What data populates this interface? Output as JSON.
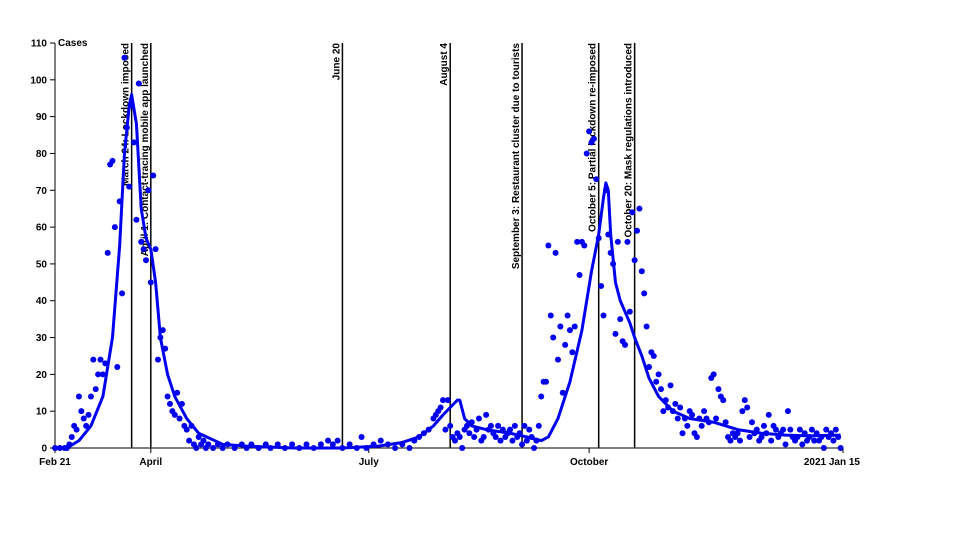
{
  "chart_data": {
    "type": "scatter",
    "ylabel": "Cases",
    "xlim": [
      0,
      329
    ],
    "xticks": [
      {
        "value": 0,
        "label": "Feb 21"
      },
      {
        "value": 40,
        "label": "April"
      },
      {
        "value": 131,
        "label": "July"
      },
      {
        "value": 223,
        "label": "October"
      },
      {
        "value": 329,
        "label": "2021 Jan 15"
      }
    ],
    "ylim": [
      0,
      110
    ],
    "yticks": [
      0,
      10,
      20,
      30,
      40,
      50,
      60,
      70,
      80,
      90,
      100,
      110
    ],
    "annotations": [
      {
        "x": 32,
        "label": "March 24: Lockdown imposed"
      },
      {
        "x": 40,
        "label": "April 1: Contact-tracing mobile app launched"
      },
      {
        "x": 120,
        "label": "June 20"
      },
      {
        "x": 165,
        "label": "August 4"
      },
      {
        "x": 195,
        "label": "September 3: Restaurant cluster due to tourists"
      },
      {
        "x": 227,
        "label": "October 5: Partial lockdown re-imposed"
      },
      {
        "x": 242,
        "label": "October 20: Mask regulations introduced"
      }
    ],
    "series": [
      {
        "type": "scatter",
        "color": "#0000ee",
        "x": [
          0,
          2,
          4,
          5,
          6,
          7,
          8,
          9,
          10,
          11,
          12,
          13,
          14,
          15,
          16,
          17,
          18,
          19,
          20,
          21,
          22,
          23,
          24,
          25,
          26,
          27,
          28,
          29,
          30,
          31,
          32,
          33,
          34,
          35,
          36,
          37,
          38,
          39,
          40,
          41,
          42,
          43,
          44,
          45,
          46,
          47,
          48,
          49,
          50,
          51,
          52,
          53,
          54,
          55,
          56,
          57,
          58,
          59,
          60,
          61,
          62,
          63,
          64,
          66,
          68,
          70,
          72,
          75,
          78,
          80,
          82,
          85,
          88,
          90,
          93,
          96,
          99,
          102,
          105,
          108,
          111,
          114,
          116,
          118,
          120,
          123,
          126,
          128,
          130,
          133,
          136,
          139,
          142,
          145,
          148,
          150,
          152,
          154,
          156,
          158,
          159,
          160,
          161,
          162,
          163,
          164,
          165,
          166,
          167,
          168,
          169,
          170,
          171,
          172,
          173,
          174,
          175,
          176,
          177,
          178,
          179,
          180,
          181,
          182,
          183,
          184,
          185,
          186,
          187,
          188,
          189,
          190,
          191,
          192,
          193,
          194,
          195,
          196,
          197,
          198,
          199,
          200,
          201,
          202,
          203,
          204,
          205,
          206,
          207,
          208,
          209,
          210,
          211,
          212,
          213,
          214,
          215,
          216,
          217,
          218,
          219,
          220,
          221,
          222,
          223,
          224,
          225,
          226,
          227,
          228,
          229,
          230,
          231,
          232,
          233,
          234,
          235,
          236,
          237,
          238,
          239,
          240,
          241,
          242,
          243,
          244,
          245,
          246,
          247,
          248,
          249,
          250,
          251,
          252,
          253,
          254,
          255,
          256,
          257,
          258,
          259,
          260,
          261,
          262,
          263,
          264,
          265,
          266,
          267,
          268,
          269,
          270,
          271,
          272,
          273,
          274,
          275,
          276,
          277,
          278,
          279,
          280,
          281,
          282,
          283,
          284,
          285,
          286,
          287,
          288,
          289,
          290,
          291,
          292,
          293,
          294,
          295,
          296,
          297,
          298,
          299,
          300,
          301,
          302,
          303,
          304,
          305,
          306,
          307,
          308,
          309,
          310,
          311,
          312,
          313,
          314,
          315,
          316,
          317,
          318,
          319,
          320,
          321,
          322,
          323,
          324,
          325,
          326,
          327,
          328
        ],
        "values": [
          0,
          0,
          0,
          0,
          1,
          3,
          6,
          5,
          14,
          10,
          8,
          6,
          9,
          14,
          24,
          16,
          20,
          24,
          20,
          23,
          53,
          77,
          78,
          60,
          22,
          67,
          42,
          106,
          87,
          71,
          93,
          83,
          62,
          99,
          56,
          54,
          51,
          70,
          45,
          74,
          54,
          24,
          30,
          32,
          27,
          14,
          12,
          10,
          9,
          15,
          8,
          12,
          6,
          5,
          2,
          6,
          1,
          0,
          3,
          1,
          2,
          0,
          1,
          0,
          1,
          0,
          1,
          0,
          1,
          0,
          1,
          0,
          1,
          0,
          1,
          0,
          1,
          0,
          1,
          0,
          1,
          2,
          1,
          2,
          0,
          1,
          0,
          3,
          0,
          1,
          2,
          1,
          0,
          1,
          0,
          2,
          3,
          4,
          5,
          8,
          9,
          10,
          11,
          13,
          5,
          13,
          6,
          3,
          2,
          4,
          3,
          0,
          5,
          6,
          4,
          7,
          3,
          5,
          8,
          2,
          3,
          9,
          5,
          6,
          4,
          3,
          6,
          2,
          5,
          3,
          4,
          5,
          2,
          6,
          3,
          4,
          1,
          6,
          2,
          5,
          3,
          0,
          2,
          6,
          14,
          18,
          18,
          55,
          36,
          30,
          53,
          24,
          33,
          15,
          28,
          36,
          32,
          26,
          33,
          56,
          47,
          56,
          55,
          80,
          86,
          83,
          84,
          73,
          57,
          44,
          36,
          70,
          58,
          53,
          50,
          31,
          56,
          35,
          29,
          28,
          56,
          37,
          64,
          51,
          59,
          65,
          48,
          42,
          33,
          22,
          26,
          25,
          18,
          20,
          16,
          10,
          13,
          11,
          17,
          10,
          12,
          8,
          11,
          4,
          8,
          6,
          10,
          9,
          4,
          3,
          8,
          6,
          10,
          8,
          7,
          19,
          20,
          8,
          16,
          14,
          13,
          7,
          3,
          2,
          4,
          3,
          4,
          2,
          10,
          13,
          11,
          3,
          7,
          4,
          5,
          2,
          3,
          6,
          4,
          9,
          2,
          6,
          5,
          3,
          4,
          5,
          1,
          10,
          5,
          3,
          2,
          3,
          5,
          1,
          4,
          2,
          3,
          5,
          2,
          4,
          2,
          3,
          0,
          5,
          3,
          4,
          2,
          5,
          3,
          0
        ]
      },
      {
        "type": "line",
        "color": "#0000ee",
        "x": [
          0,
          5,
          10,
          15,
          20,
          24,
          27,
          29,
          31,
          32,
          34,
          36,
          38,
          40,
          42,
          44,
          47,
          50,
          55,
          60,
          70,
          80,
          100,
          120,
          135,
          145,
          152,
          158,
          162,
          165,
          168,
          169,
          171,
          174,
          180,
          190,
          197,
          203,
          206,
          210,
          215,
          220,
          224,
          227,
          229,
          230,
          231,
          232,
          234,
          236,
          240,
          242,
          245,
          248,
          252,
          258,
          265,
          275,
          285,
          295,
          305,
          315,
          328
        ],
        "values": [
          0,
          0,
          2,
          6,
          14,
          30,
          55,
          80,
          93,
          96,
          88,
          65,
          57,
          54,
          45,
          30,
          20,
          14,
          8,
          4,
          1,
          0.5,
          0,
          0,
          0.5,
          1.5,
          3,
          6,
          9,
          11,
          13,
          13,
          8,
          6,
          5,
          4,
          3,
          2,
          3,
          8,
          18,
          32,
          48,
          58,
          68,
          72,
          70,
          58,
          45,
          40,
          34,
          30,
          25,
          19,
          14,
          10,
          8,
          7,
          5,
          4,
          3.5,
          3.3,
          3.5
        ]
      }
    ]
  }
}
